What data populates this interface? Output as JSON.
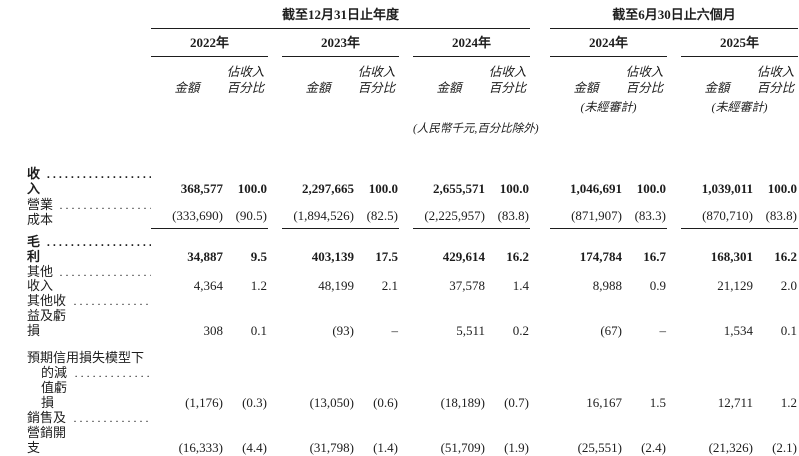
{
  "table": {
    "group_headers": [
      {
        "label": "截至12月31日止年度"
      },
      {
        "label": "截至6月30日止六個月"
      }
    ],
    "year_headers": [
      "2022年",
      "2023年",
      "2024年",
      "2024年",
      "2025年"
    ],
    "col_subheader": {
      "amount": "金額",
      "pct_line1": "佔收入",
      "pct_line2": "百分比"
    },
    "unaudited_note": "(未經審計)",
    "currency_note": "(人民幣千元,百分比除外)",
    "rows": [
      {
        "label": "收入",
        "dots": "..........................",
        "values": [
          "368,577",
          "100.0",
          "2,297,665",
          "100.0",
          "2,655,571",
          "100.0",
          "1,046,691",
          "100.0",
          "1,039,011",
          "100.0"
        ]
      },
      {
        "label": "營業成本",
        "dots": "..........................",
        "values": [
          "(333,690)",
          "(90.5)",
          "(1,894,526)",
          "(82.5)",
          "(2,225,957)",
          "(83.8)",
          "(871,907)",
          "(83.3)",
          "(870,710)",
          "(83.8)"
        ]
      },
      {
        "label": "毛利",
        "dots": "..........................",
        "values": [
          "34,887",
          "9.5",
          "403,139",
          "17.5",
          "429,614",
          "16.2",
          "174,784",
          "16.7",
          "168,301",
          "16.2"
        ]
      },
      {
        "label": "其他收入",
        "dots": "..........................",
        "values": [
          "4,364",
          "1.2",
          "48,199",
          "2.1",
          "37,578",
          "1.4",
          "8,988",
          "0.9",
          "21,129",
          "2.0"
        ]
      },
      {
        "label": "其他收益及虧損",
        "dots": "..........................",
        "values": [
          "308",
          "0.1",
          "(93)",
          "–",
          "5,511",
          "0.2",
          "(67)",
          "–",
          "1,534",
          "0.1"
        ]
      },
      {
        "label_line1": "預期信用損失模型下",
        "label_line2": "的減值虧損",
        "dots": "..........................",
        "values": [
          "(1,176)",
          "(0.3)",
          "(13,050)",
          "(0.6)",
          "(18,189)",
          "(0.7)",
          "16,167",
          "1.5",
          "12,711",
          "1.2"
        ]
      },
      {
        "label": "銷售及營銷開支",
        "dots": "..........................",
        "values": [
          "(16,333)",
          "(4.4)",
          "(31,798)",
          "(1.4)",
          "(51,709)",
          "(1.9)",
          "(25,551)",
          "(2.4)",
          "(21,326)",
          "(2.1)"
        ]
      }
    ]
  }
}
